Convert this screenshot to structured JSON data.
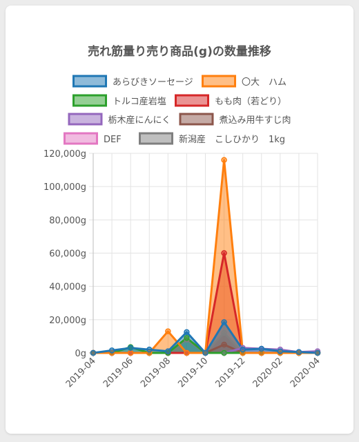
{
  "chart_data": {
    "type": "area",
    "title": "売れ筋量り売り商品(g)の数量推移",
    "x": [
      "2019-04",
      "2019-05",
      "2019-06",
      "2019-07",
      "2019-08",
      "2019-09",
      "2019-10",
      "2019-11",
      "2019-12",
      "2020-01",
      "2020-02",
      "2020-03",
      "2020-04"
    ],
    "xtick_labels": [
      "2019-04",
      "2019-06",
      "2019-08",
      "2019-10",
      "2019-12",
      "2020-02",
      "2020-04"
    ],
    "ytick_labels": [
      "0g",
      "20,000g",
      "40,000g",
      "60,000g",
      "80,000g",
      "100,000g",
      "120,000g"
    ],
    "ylim": [
      0,
      120000
    ],
    "grid": true,
    "legend_position": "top",
    "series": [
      {
        "name": "あらびきソーセージ",
        "color": "#1f77b4",
        "values": [
          0,
          1500,
          3000,
          2000,
          1000,
          12500,
          0,
          18500,
          2000,
          2500,
          1000,
          500,
          0
        ]
      },
      {
        "name": "〇大　ハム",
        "color": "#ff7f0e",
        "values": [
          0,
          0,
          0,
          0,
          13000,
          0,
          0,
          116000,
          0,
          0,
          0,
          0,
          0
        ]
      },
      {
        "name": "トルコ産岩塩",
        "color": "#2ca02c",
        "values": [
          0,
          0,
          3500,
          0,
          0,
          9000,
          0,
          0,
          0,
          0,
          0,
          0,
          0
        ]
      },
      {
        "name": "もも肉（若どり）",
        "color": "#d62728",
        "values": [
          0,
          0,
          0,
          0,
          0,
          0,
          0,
          60000,
          0,
          0,
          0,
          0,
          0
        ]
      },
      {
        "name": "栃木産にんにく",
        "color": "#9467bd",
        "values": [
          0,
          0,
          0,
          0,
          0,
          0,
          0,
          0,
          3000,
          2500,
          2000,
          500,
          1000
        ]
      },
      {
        "name": "煮込み用牛すじ肉",
        "color": "#8c564b",
        "values": [
          0,
          0,
          0,
          0,
          0,
          0,
          0,
          5000,
          0,
          0,
          0,
          0,
          0
        ]
      },
      {
        "name": "DEF",
        "color": "#e377c2",
        "values": [
          0,
          0,
          0,
          0,
          0,
          0,
          0,
          0,
          0,
          0,
          0,
          0,
          0
        ]
      },
      {
        "name": "新潟産　こしひかり　1kg",
        "color": "#7f7f7f",
        "values": [
          0,
          0,
          0,
          0,
          0,
          8000,
          0,
          12000,
          0,
          0,
          0,
          0,
          0
        ]
      }
    ]
  }
}
